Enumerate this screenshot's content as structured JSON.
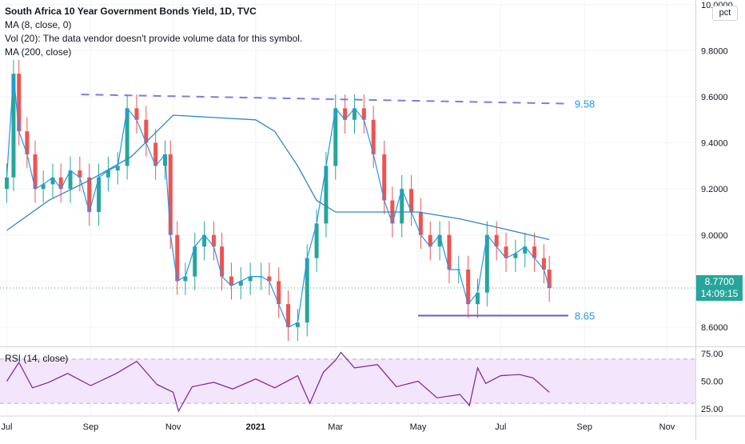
{
  "legend": {
    "title": "South Africa 10 Year Government Bonds Yield, 1D, TVC",
    "ma8": "MA (8, close, 0)",
    "vol": "Vol (20): The data vendor doesn't provide volume data for this symbol.",
    "ma200": "MA (200, close)"
  },
  "rsi_legend": "RSI (14, close)",
  "scale_button": "pct",
  "price_tag": {
    "price": "8.7700",
    "countdown": "14:09:15"
  },
  "annotations": {
    "resistance_label": "9.58",
    "support_label": "8.65"
  },
  "colors": {
    "up": "#26a69a",
    "down": "#ef5350",
    "ma8": "#2196f3",
    "ma200": "#2f86c6",
    "trendline": "#7e7eda",
    "rsi_line": "#7b1fa2",
    "rsi_band": "#f3e5fc",
    "annotation_text": "#2196f3"
  },
  "chart_data": [
    {
      "type": "line",
      "title": "South Africa 10 Year Government Bonds Yield, 1D, TVC",
      "ylim": [
        8.52,
        10.02
      ],
      "y_ticks": [
        "10.0000",
        "9.8000",
        "9.6000",
        "9.4000",
        "9.2000",
        "9.0000",
        "8.8000",
        "8.6000"
      ],
      "x_ticks": [
        "Jul",
        "Sep",
        "Nov",
        "2021",
        "Mar",
        "May",
        "Jul",
        "Sep",
        "Nov"
      ],
      "grid": true,
      "last_price": 8.77,
      "series": [
        {
          "name": "South Africa 10 Year Government Bonds Yield",
          "x": [
            "2020-07-01",
            "2020-07-06",
            "2020-07-10",
            "2020-07-16",
            "2020-07-22",
            "2020-07-28",
            "2020-08-04",
            "2020-08-10",
            "2020-08-17",
            "2020-08-24",
            "2020-08-31",
            "2020-09-07",
            "2020-09-14",
            "2020-09-21",
            "2020-09-28",
            "2020-10-05",
            "2020-10-12",
            "2020-10-19",
            "2020-10-26",
            "2020-10-30",
            "2020-11-04",
            "2020-11-10",
            "2020-11-17",
            "2020-11-24",
            "2020-12-01",
            "2020-12-07",
            "2020-12-14",
            "2020-12-21",
            "2020-12-28",
            "2021-01-05",
            "2021-01-11",
            "2021-01-18",
            "2021-01-25",
            "2021-02-01",
            "2021-02-08",
            "2021-02-15",
            "2021-02-22",
            "2021-03-01",
            "2021-03-08",
            "2021-03-15",
            "2021-03-22",
            "2021-03-29",
            "2021-04-06",
            "2021-04-12",
            "2021-04-19",
            "2021-04-26",
            "2021-05-03",
            "2021-05-10",
            "2021-05-17",
            "2021-05-24",
            "2021-05-31",
            "2021-06-07",
            "2021-06-14",
            "2021-06-21",
            "2021-06-28",
            "2021-07-05",
            "2021-07-12",
            "2021-07-19",
            "2021-07-26",
            "2021-08-02",
            "2021-08-06"
          ],
          "values": [
            9.25,
            9.7,
            9.45,
            9.35,
            9.2,
            9.22,
            9.25,
            9.2,
            9.28,
            9.25,
            9.1,
            9.25,
            9.28,
            9.3,
            9.55,
            9.5,
            9.4,
            9.3,
            9.35,
            9.0,
            8.8,
            8.82,
            8.95,
            9.0,
            8.95,
            8.82,
            8.78,
            8.8,
            8.82,
            8.82,
            8.8,
            8.7,
            8.6,
            8.62,
            8.9,
            9.05,
            9.3,
            9.55,
            9.5,
            9.55,
            9.5,
            9.35,
            9.15,
            9.05,
            9.2,
            9.1,
            9.0,
            8.95,
            9.0,
            8.85,
            8.85,
            8.7,
            8.75,
            9.0,
            8.95,
            8.9,
            8.92,
            8.95,
            8.9,
            8.85,
            8.77
          ]
        },
        {
          "name": "MA (200, close)",
          "x": [
            "2020-07-01",
            "2020-08-01",
            "2020-09-01",
            "2020-10-01",
            "2020-10-20",
            "2020-11-01",
            "2020-12-01",
            "2021-01-01",
            "2021-01-15",
            "2021-02-01",
            "2021-02-15",
            "2021-03-01",
            "2021-04-01",
            "2021-05-01",
            "2021-06-01",
            "2021-07-01",
            "2021-08-06"
          ],
          "values": [
            9.02,
            9.15,
            9.24,
            9.34,
            9.45,
            9.52,
            9.51,
            9.5,
            9.45,
            9.3,
            9.15,
            9.1,
            9.1,
            9.1,
            9.07,
            9.03,
            8.98
          ]
        }
      ],
      "annotations": [
        {
          "type": "dashed-trendline",
          "from": [
            "2020-08-25",
            9.61
          ],
          "to": [
            "2021-08-20",
            9.57
          ],
          "label": "9.58"
        },
        {
          "type": "horizontal-line",
          "from": [
            "2021-05-01",
            8.65
          ],
          "to": [
            "2021-08-20",
            8.65
          ],
          "label": "8.65"
        }
      ]
    },
    {
      "type": "line",
      "title": "RSI (14, close)",
      "ylim": [
        20,
        80
      ],
      "y_ticks": [
        "75.00",
        "50.00",
        "25.00"
      ],
      "band": [
        30,
        70
      ],
      "series": [
        {
          "name": "RSI (14, close)",
          "x": [
            "2020-07-01",
            "2020-07-10",
            "2020-07-20",
            "2020-08-01",
            "2020-08-15",
            "2020-09-01",
            "2020-09-20",
            "2020-10-05",
            "2020-10-20",
            "2020-11-01",
            "2020-11-05",
            "2020-11-15",
            "2020-12-01",
            "2020-12-15",
            "2021-01-01",
            "2021-01-15",
            "2021-02-01",
            "2021-02-10",
            "2021-02-20",
            "2021-03-01",
            "2021-03-05",
            "2021-03-15",
            "2021-04-01",
            "2021-04-15",
            "2021-05-01",
            "2021-05-15",
            "2021-06-01",
            "2021-06-08",
            "2021-06-14",
            "2021-06-20",
            "2021-07-01",
            "2021-07-15",
            "2021-07-25",
            "2021-08-06"
          ],
          "values": [
            50,
            67,
            44,
            49,
            57,
            46,
            57,
            68,
            47,
            40,
            23,
            45,
            49,
            43,
            52,
            44,
            55,
            30,
            58,
            69,
            76,
            62,
            65,
            45,
            50,
            35,
            38,
            28,
            62,
            48,
            55,
            56,
            53,
            40
          ]
        }
      ]
    }
  ]
}
